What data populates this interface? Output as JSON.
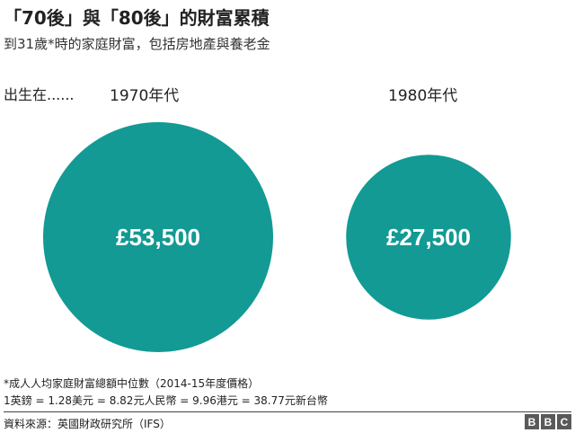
{
  "header": {
    "title": "「70後」與「80後」的財富累積",
    "subtitle": "到31歲*時的家庭財富，包括房地產與養老金"
  },
  "born_label": "出生在......",
  "chart_data": {
    "type": "bubble",
    "title": "「70後」與「80後」的財富累積",
    "subtitle": "到31歲*時的家庭財富，包括房地產與養老金",
    "categories": [
      "1970年代",
      "1980年代"
    ],
    "values": [
      53500,
      27500
    ],
    "value_labels": [
      "£53,500",
      "£27,500"
    ],
    "color": "#139a94",
    "label_color": "#ffffff"
  },
  "footnotes": {
    "note1": "*成人人均家庭財富總額中位數（2014-15年度價格）",
    "note2": "1英鎊 = 1.28美元 = 8.82元人民幣 = 9.96港元 = 38.77元新台幣"
  },
  "footer": {
    "source": "資料來源：英國財政研究所（IFS）",
    "logo_letters": [
      "B",
      "B",
      "C"
    ]
  }
}
